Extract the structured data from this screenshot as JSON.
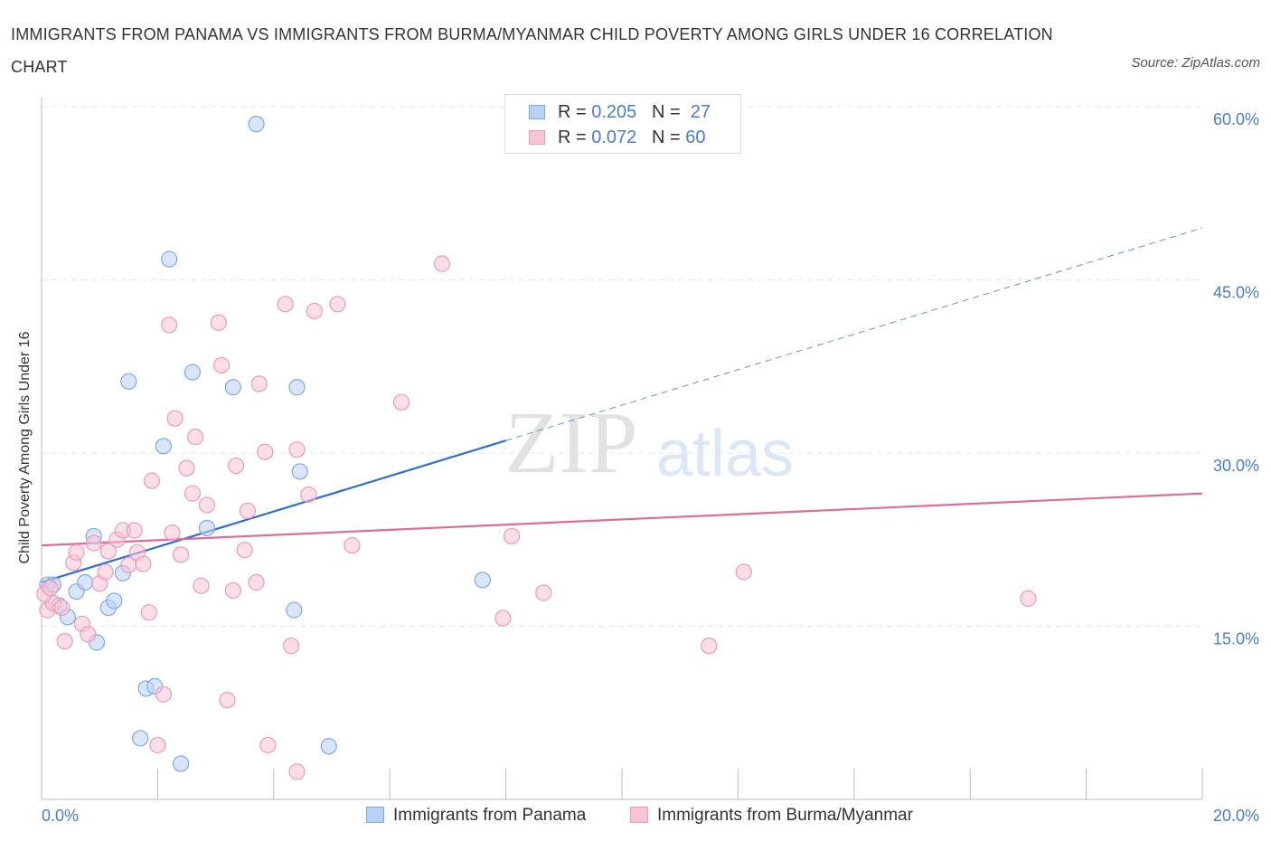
{
  "header": {
    "title": "IMMIGRANTS FROM PANAMA VS IMMIGRANTS FROM BURMA/MYANMAR CHILD POVERTY AMONG GIRLS UNDER 16 CORRELATION CHART",
    "source": "Source: ZipAtlas.com"
  },
  "legend": {
    "panama": {
      "r_label": "R =",
      "r_value": "0.205",
      "n_label": "N =",
      "n_value": "27"
    },
    "burma": {
      "r_label": "R =",
      "r_value": "0.072",
      "n_label": "N =",
      "n_value": "60"
    },
    "bottom": {
      "panama": "Immigrants from Panama",
      "burma": "Immigrants from Burma/Myanmar"
    }
  },
  "watermark": {
    "zip": "ZIP",
    "atlas": "atlas"
  },
  "colors": {
    "panama_fill": "#b9d1f5",
    "panama_stroke": "#7ea9e6",
    "panama_line": "#2e6fce",
    "burma_fill": "#f8c3d4",
    "burma_stroke": "#ee9ab5",
    "burma_line": "#e06b96",
    "grid": "#e4e4e4",
    "axis_text": "#4a7cc9"
  },
  "chart_data": {
    "type": "scatter",
    "title": "IMMIGRANTS FROM PANAMA VS IMMIGRANTS FROM BURMA/MYANMAR CHILD POVERTY AMONG GIRLS UNDER 16 CORRELATION CHART",
    "xlabel": "",
    "ylabel": "Child Poverty Among Girls Under 16",
    "xlim": [
      0,
      20
    ],
    "ylim": [
      0,
      60
    ],
    "x_tick_labels": [
      "0.0%",
      "20.0%"
    ],
    "y_ticks": [
      15,
      30,
      45,
      60
    ],
    "y_tick_labels": [
      "15.0%",
      "30.0%",
      "45.0%",
      "60.0%"
    ],
    "grid": true,
    "legend_position": "top-center",
    "series": [
      {
        "name": "Immigrants from Panama",
        "R": 0.205,
        "N": 27,
        "trend": {
          "x0": 0,
          "y0": 18.8,
          "x1": 20,
          "y1": 49.5,
          "solid_until_x": 8.0
        },
        "points": [
          [
            0.1,
            18.6
          ],
          [
            0.2,
            18.6
          ],
          [
            0.3,
            16.8
          ],
          [
            0.45,
            15.8
          ],
          [
            0.6,
            18.0
          ],
          [
            0.75,
            18.8
          ],
          [
            0.9,
            22.8
          ],
          [
            0.95,
            13.6
          ],
          [
            1.15,
            16.6
          ],
          [
            1.25,
            17.2
          ],
          [
            1.4,
            19.6
          ],
          [
            1.5,
            36.2
          ],
          [
            1.7,
            5.3
          ],
          [
            1.8,
            9.6
          ],
          [
            1.95,
            9.8
          ],
          [
            2.1,
            30.6
          ],
          [
            2.2,
            46.8
          ],
          [
            2.4,
            3.1
          ],
          [
            2.6,
            37.0
          ],
          [
            2.85,
            23.5
          ],
          [
            3.3,
            35.7
          ],
          [
            3.7,
            58.5
          ],
          [
            4.35,
            16.4
          ],
          [
            4.45,
            28.4
          ],
          [
            4.4,
            35.7
          ],
          [
            4.95,
            4.6
          ],
          [
            7.6,
            19.0
          ]
        ]
      },
      {
        "name": "Immigrants from Burma/Myanmar",
        "R": 0.072,
        "N": 60,
        "trend": {
          "x0": 0,
          "y0": 22.0,
          "x1": 20,
          "y1": 26.5
        },
        "points": [
          [
            0.1,
            16.4
          ],
          [
            0.2,
            17.0
          ],
          [
            0.35,
            16.6
          ],
          [
            0.4,
            13.7
          ],
          [
            0.55,
            20.5
          ],
          [
            0.6,
            21.4
          ],
          [
            0.7,
            15.2
          ],
          [
            0.8,
            14.3
          ],
          [
            0.9,
            22.2
          ],
          [
            1.0,
            18.7
          ],
          [
            1.1,
            19.7
          ],
          [
            1.15,
            21.5
          ],
          [
            1.3,
            22.5
          ],
          [
            1.4,
            23.3
          ],
          [
            1.5,
            20.3
          ],
          [
            1.6,
            23.3
          ],
          [
            1.65,
            21.4
          ],
          [
            1.75,
            20.4
          ],
          [
            1.85,
            16.2
          ],
          [
            1.9,
            27.6
          ],
          [
            2.0,
            4.7
          ],
          [
            2.1,
            9.1
          ],
          [
            2.2,
            41.1
          ],
          [
            2.25,
            23.1
          ],
          [
            2.4,
            21.2
          ],
          [
            2.3,
            33.0
          ],
          [
            2.5,
            28.7
          ],
          [
            2.6,
            26.5
          ],
          [
            2.65,
            31.4
          ],
          [
            2.75,
            18.5
          ],
          [
            2.85,
            25.5
          ],
          [
            3.05,
            41.3
          ],
          [
            3.1,
            37.6
          ],
          [
            3.2,
            8.6
          ],
          [
            3.3,
            18.1
          ],
          [
            3.35,
            28.9
          ],
          [
            3.5,
            21.6
          ],
          [
            3.55,
            25.0
          ],
          [
            3.7,
            18.8
          ],
          [
            3.75,
            36.0
          ],
          [
            3.85,
            30.1
          ],
          [
            3.9,
            4.7
          ],
          [
            4.2,
            42.9
          ],
          [
            4.3,
            13.3
          ],
          [
            4.4,
            30.3
          ],
          [
            4.4,
            2.4
          ],
          [
            4.6,
            26.4
          ],
          [
            4.7,
            42.3
          ],
          [
            5.1,
            42.9
          ],
          [
            5.35,
            22.0
          ],
          [
            6.2,
            34.4
          ],
          [
            6.9,
            46.4
          ],
          [
            7.95,
            15.7
          ],
          [
            8.1,
            22.8
          ],
          [
            8.65,
            17.9
          ],
          [
            11.5,
            13.3
          ],
          [
            12.1,
            19.7
          ],
          [
            17.0,
            17.4
          ],
          [
            0.05,
            17.8
          ],
          [
            0.15,
            18.3
          ]
        ]
      }
    ]
  }
}
